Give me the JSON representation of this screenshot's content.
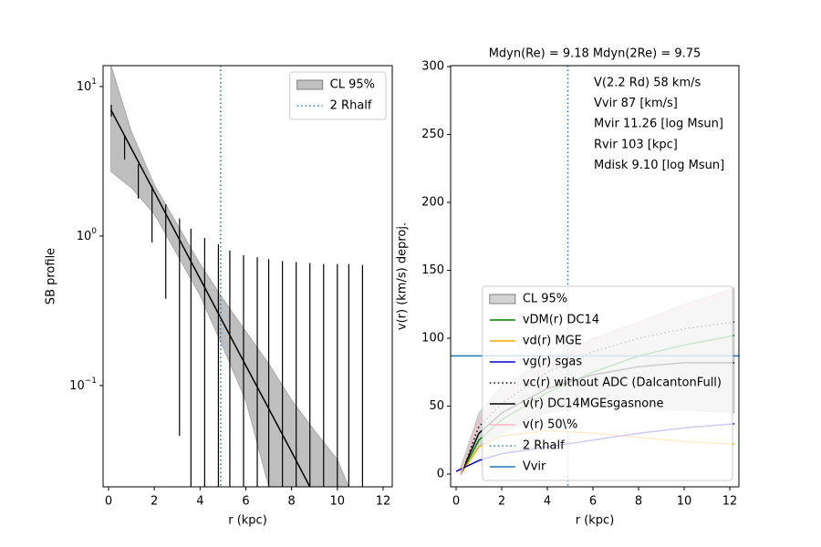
{
  "chart_data": [
    {
      "type": "line",
      "xlabel": "r (kpc)",
      "ylabel": "SB profile",
      "xlim": [
        -0.24,
        12.4
      ],
      "ylim": [
        0.021,
        13.8
      ],
      "log_y": true,
      "xticks": [
        0,
        2,
        4,
        6,
        8,
        10,
        12
      ],
      "yticks": [
        {
          "value": 0.1,
          "label": "10",
          "exponent": "−1"
        },
        {
          "value": 1,
          "label": "10",
          "exponent": "0"
        },
        {
          "value": 10,
          "label": "10",
          "exponent": "1"
        }
      ],
      "legend_loc": "upper right",
      "series": [
        {
          "name": "CL 95%",
          "kind": "band",
          "color": "#808080",
          "alpha": 0.5,
          "x": [
            0.1,
            1,
            2,
            3,
            4,
            5,
            6,
            7,
            8,
            9,
            10,
            10.5
          ],
          "upper": [
            14,
            5.0,
            2.2,
            1.2,
            0.65,
            0.38,
            0.23,
            0.14,
            0.08,
            0.05,
            0.032,
            0.021
          ],
          "lower": [
            2.7,
            2.1,
            1.4,
            0.75,
            0.4,
            0.18,
            0.079,
            0.021,
            0.01,
            0.01,
            0.01,
            0.01
          ]
        },
        {
          "kind": "line",
          "color": "#000000",
          "linestyle": "solid",
          "x": [
            0.1,
            1,
            2,
            3,
            4,
            5,
            6,
            7,
            8,
            8.8
          ],
          "values": [
            7,
            3.84,
            1.97,
            1.01,
            0.518,
            0.265,
            0.136,
            0.07,
            0.036,
            0.021
          ]
        },
        {
          "kind": "errorbar",
          "color": "#000000",
          "x": [
            0.12,
            0.7,
            1.3,
            1.9,
            2.5,
            3.1,
            3.6,
            4.2,
            4.8,
            5.3,
            5.9,
            6.5,
            7.0,
            7.6,
            8.2,
            8.8,
            9.4,
            10.0,
            10.5,
            11.1
          ],
          "upper": [
            7.55,
            4.62,
            3.03,
            2.16,
            1.63,
            1.31,
            1.12,
            0.97,
            0.88,
            0.8,
            0.745,
            0.72,
            0.7,
            0.68,
            0.67,
            0.66,
            0.65,
            0.65,
            0.65,
            0.64
          ],
          "lower": [
            6.3,
            3.25,
            1.78,
            0.906,
            0.38,
            0.046,
            0.01,
            0.01,
            0.01,
            0.01,
            0.01,
            0.01,
            0.01,
            0.01,
            0.01,
            0.01,
            0.01,
            0.01,
            0.01,
            0.01
          ]
        },
        {
          "name": "2 Rhalf",
          "kind": "vline",
          "color": "#1f77b4",
          "linestyle": "dotted",
          "x": 4.9
        }
      ]
    },
    {
      "type": "line",
      "title": "Mdyn(Re) = 9.18  Mdyn(2Re) = 9.75",
      "xlabel": "r (kpc)",
      "ylabel": "v(r) (km/s) deproj.",
      "xlim": [
        -0.24,
        12.4
      ],
      "ylim": [
        -9.4,
        300.7
      ],
      "xticks": [
        0,
        2,
        4,
        6,
        8,
        10,
        12
      ],
      "yticks": [
        0,
        50,
        100,
        150,
        200,
        250,
        300
      ],
      "annotations": [
        "V(2.2 Rd) 58 km/s",
        "Vvir 87 [km/s]",
        "Mvir 11.26 [log Msun]",
        "Rvir 103 [kpc]",
        "Mdisk 9.10 [log Msun]"
      ],
      "legend_loc": "lower right",
      "series": [
        {
          "name": "CL 95%",
          "kind": "band",
          "color": "#808080",
          "alpha": 0.35,
          "x": [
            0.2,
            1,
            2,
            4,
            6,
            8,
            10,
            12.2
          ],
          "upper": [
            5,
            45,
            65,
            85,
            100,
            112,
            125,
            137
          ],
          "lower": [
            0,
            20,
            30,
            45,
            50,
            48,
            47,
            45
          ]
        },
        {
          "name": "vDM(r) DC14",
          "kind": "line",
          "color": "#008000",
          "linestyle": "solid",
          "x": [
            0.2,
            1,
            2,
            4,
            6,
            8,
            10,
            12.2
          ],
          "values": [
            0,
            25,
            40,
            60,
            75,
            87,
            95,
            102
          ]
        },
        {
          "name": "vd(r) MGE",
          "kind": "line",
          "color": "#ffa500",
          "linestyle": "solid",
          "x": [
            0.2,
            1,
            2,
            4,
            6,
            8,
            10,
            12.2
          ],
          "values": [
            0,
            20,
            28,
            32,
            30,
            27,
            24,
            22
          ]
        },
        {
          "name": "vg(r) sgas",
          "kind": "line",
          "color": "#0000cd",
          "linestyle": "solid",
          "x": [
            0,
            1,
            2,
            4,
            6,
            8,
            10,
            12.2
          ],
          "values": [
            2,
            10,
            15,
            20,
            25,
            30,
            34,
            37
          ]
        },
        {
          "name": "vc(r) without ADC (DalcantonFull)",
          "kind": "line",
          "color": "#000000",
          "linestyle": "dotted",
          "x": [
            0.2,
            1,
            2,
            4,
            6,
            8,
            10,
            12.2
          ],
          "values": [
            0,
            35,
            52,
            75,
            90,
            100,
            107,
            112
          ]
        },
        {
          "name": "v(r) DC14MGEsgasnone",
          "kind": "line",
          "color": "#000000",
          "linestyle": "solid",
          "x": [
            0.2,
            1,
            2,
            4,
            6,
            8,
            10,
            12.2
          ],
          "values": [
            0,
            30,
            45,
            63,
            73,
            79,
            82,
            82
          ]
        },
        {
          "name": "v(r) 50\\%",
          "kind": "line",
          "color": "#ffb6c1",
          "linestyle": "solid",
          "x": [
            0.2,
            1,
            2,
            4,
            6,
            8,
            10,
            12.2
          ],
          "values": [
            0,
            40,
            55,
            80,
            97,
            110,
            122,
            135
          ]
        },
        {
          "name": "2 Rhalf",
          "kind": "vline",
          "color": "#1f77b4",
          "linestyle": "dotted",
          "x": 4.9
        },
        {
          "name": "Vvir",
          "kind": "hline",
          "color": "#1f77b4",
          "linestyle": "solid",
          "value": 87
        }
      ]
    }
  ]
}
